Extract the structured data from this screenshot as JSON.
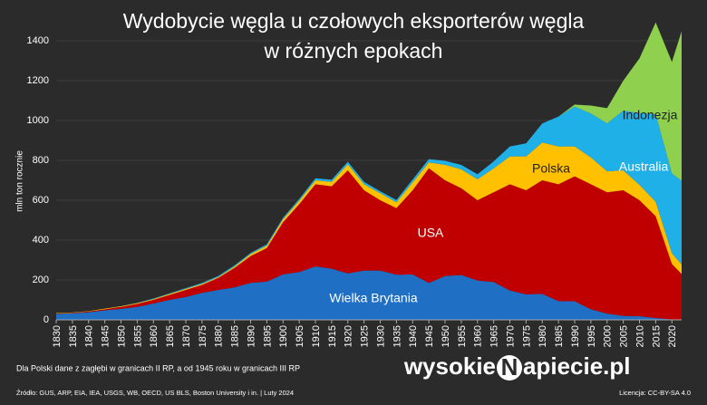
{
  "chart_data": {
    "type": "stacked_area",
    "title": [
      "Wydobycie węgla u czołowych eksporterów węgla",
      "w różnych epokach"
    ],
    "ylabel": "mln ton rocznie",
    "x": [
      1830,
      1835,
      1840,
      1845,
      1850,
      1855,
      1860,
      1865,
      1870,
      1875,
      1880,
      1885,
      1890,
      1895,
      1900,
      1905,
      1910,
      1915,
      1920,
      1925,
      1930,
      1935,
      1940,
      1945,
      1950,
      1955,
      1960,
      1965,
      1970,
      1975,
      1980,
      1985,
      1990,
      1995,
      2000,
      2005,
      2010,
      2015,
      2020,
      2023
    ],
    "series": [
      {
        "name": "Wielka Brytania",
        "color": "#1f6fc4",
        "values": [
          30,
          33,
          38,
          48,
          55,
          65,
          82,
          100,
          115,
          135,
          150,
          163,
          185,
          192,
          228,
          240,
          268,
          257,
          233,
          247,
          247,
          226,
          228,
          185,
          220,
          225,
          197,
          190,
          147,
          128,
          130,
          94,
          93,
          53,
          31,
          20,
          18,
          9,
          2,
          1
        ]
      },
      {
        "name": "USA",
        "color": "#c00000",
        "values": [
          2,
          2,
          4,
          5,
          10,
          15,
          18,
          25,
          35,
          40,
          60,
          97,
          135,
          168,
          262,
          340,
          412,
          413,
          517,
          403,
          353,
          334,
          422,
          575,
          480,
          435,
          403,
          450,
          533,
          522,
          570,
          586,
          627,
          627,
          609,
          630,
          582,
          511,
          278,
          229
        ]
      },
      {
        "name": "Polska",
        "color": "#ffc000",
        "values": [
          2,
          2,
          2,
          3,
          3,
          4,
          4,
          5,
          5,
          5,
          5,
          7,
          10,
          12,
          15,
          18,
          20,
          22,
          30,
          30,
          35,
          30,
          40,
          30,
          78,
          95,
          105,
          120,
          140,
          170,
          190,
          190,
          150,
          135,
          105,
          100,
          77,
          72,
          54,
          48
        ]
      },
      {
        "name": "Australia",
        "color": "#1fb0e8",
        "values": [
          0,
          0,
          0,
          0,
          1,
          1,
          3,
          3,
          4,
          5,
          5,
          6,
          6,
          7,
          7,
          8,
          10,
          11,
          13,
          12,
          10,
          11,
          14,
          16,
          20,
          22,
          25,
          35,
          50,
          65,
          95,
          150,
          200,
          220,
          240,
          300,
          360,
          440,
          400,
          420
        ]
      },
      {
        "name": "Indonezja",
        "color": "#8fd14f",
        "values": [
          0,
          0,
          0,
          0,
          0,
          0,
          0,
          0,
          0,
          0,
          0,
          0,
          0,
          0,
          0,
          0,
          0,
          0,
          0,
          0,
          0,
          0,
          0,
          0,
          0,
          0,
          0,
          0,
          0,
          0,
          0,
          0,
          10,
          40,
          77,
          150,
          275,
          460,
          560,
          750
        ]
      }
    ],
    "xlim": [
      1830,
      2023
    ],
    "xticks": [
      1830,
      1835,
      1840,
      1845,
      1850,
      1855,
      1860,
      1865,
      1870,
      1875,
      1880,
      1885,
      1890,
      1895,
      1900,
      1905,
      1910,
      1915,
      1920,
      1925,
      1930,
      1935,
      1940,
      1945,
      1950,
      1955,
      1960,
      1965,
      1970,
      1975,
      1980,
      1985,
      1990,
      1995,
      2000,
      2005,
      2010,
      2015,
      2020
    ],
    "ylim": [
      0,
      1500
    ],
    "yticks": [
      0,
      200,
      400,
      600,
      800,
      1000,
      1200,
      1400
    ],
    "grid": true,
    "note": "Dla Polski dane z zagłębi w granicach II RP, a od 1945 roku w granicach III RP",
    "source": "Źródło: GUS, ARP, EIA, IEA, USGS, WB, OECD, US BLS, Boston University i in.  |  Luty 2024",
    "license": "Licencja: CC-BY-SA 4.0",
    "brand": [
      "wysokie",
      "N",
      "apiecie.pl"
    ]
  }
}
